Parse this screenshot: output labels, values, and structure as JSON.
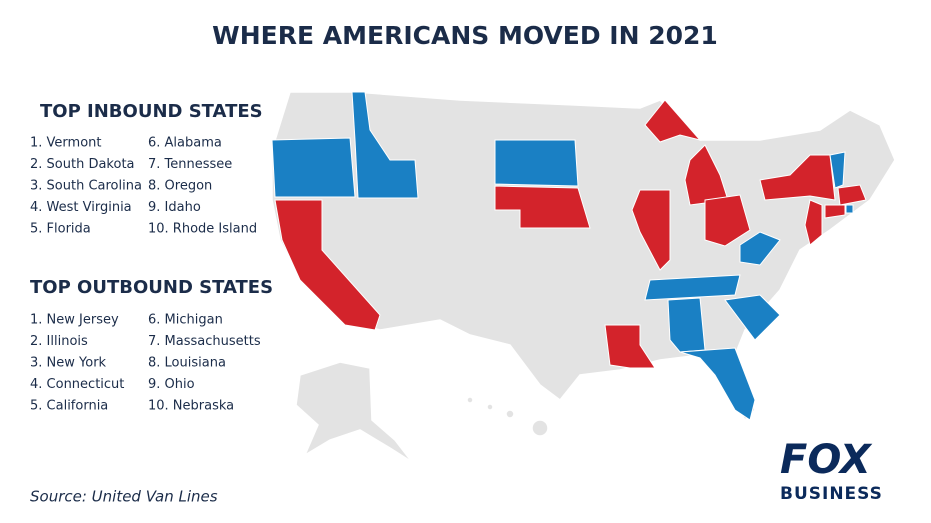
{
  "title": "WHERE AMERICANS MOVED IN 2021",
  "inbound": {
    "heading": "TOP INBOUND STATES",
    "items": [
      "1. Vermont",
      "2. South Dakota",
      "3. South Carolina",
      "4. West Virginia",
      "5. Florida",
      "6. Alabama",
      "7. Tennessee",
      "8. Oregon",
      "9. Idaho",
      "10. Rhode Island"
    ]
  },
  "outbound": {
    "heading": "TOP OUTBOUND STATES",
    "items": [
      "1. New Jersey",
      "2. Illinois",
      "3. New York",
      "4. Connecticut",
      "5. California",
      "6. Michigan",
      "7. Massachusetts",
      "8. Louisiana",
      "9. Ohio",
      "10. Nebraska"
    ]
  },
  "source": "Source:  United Van Lines",
  "logo": {
    "top": "FOX",
    "bottom": "BUSINESS"
  }
}
